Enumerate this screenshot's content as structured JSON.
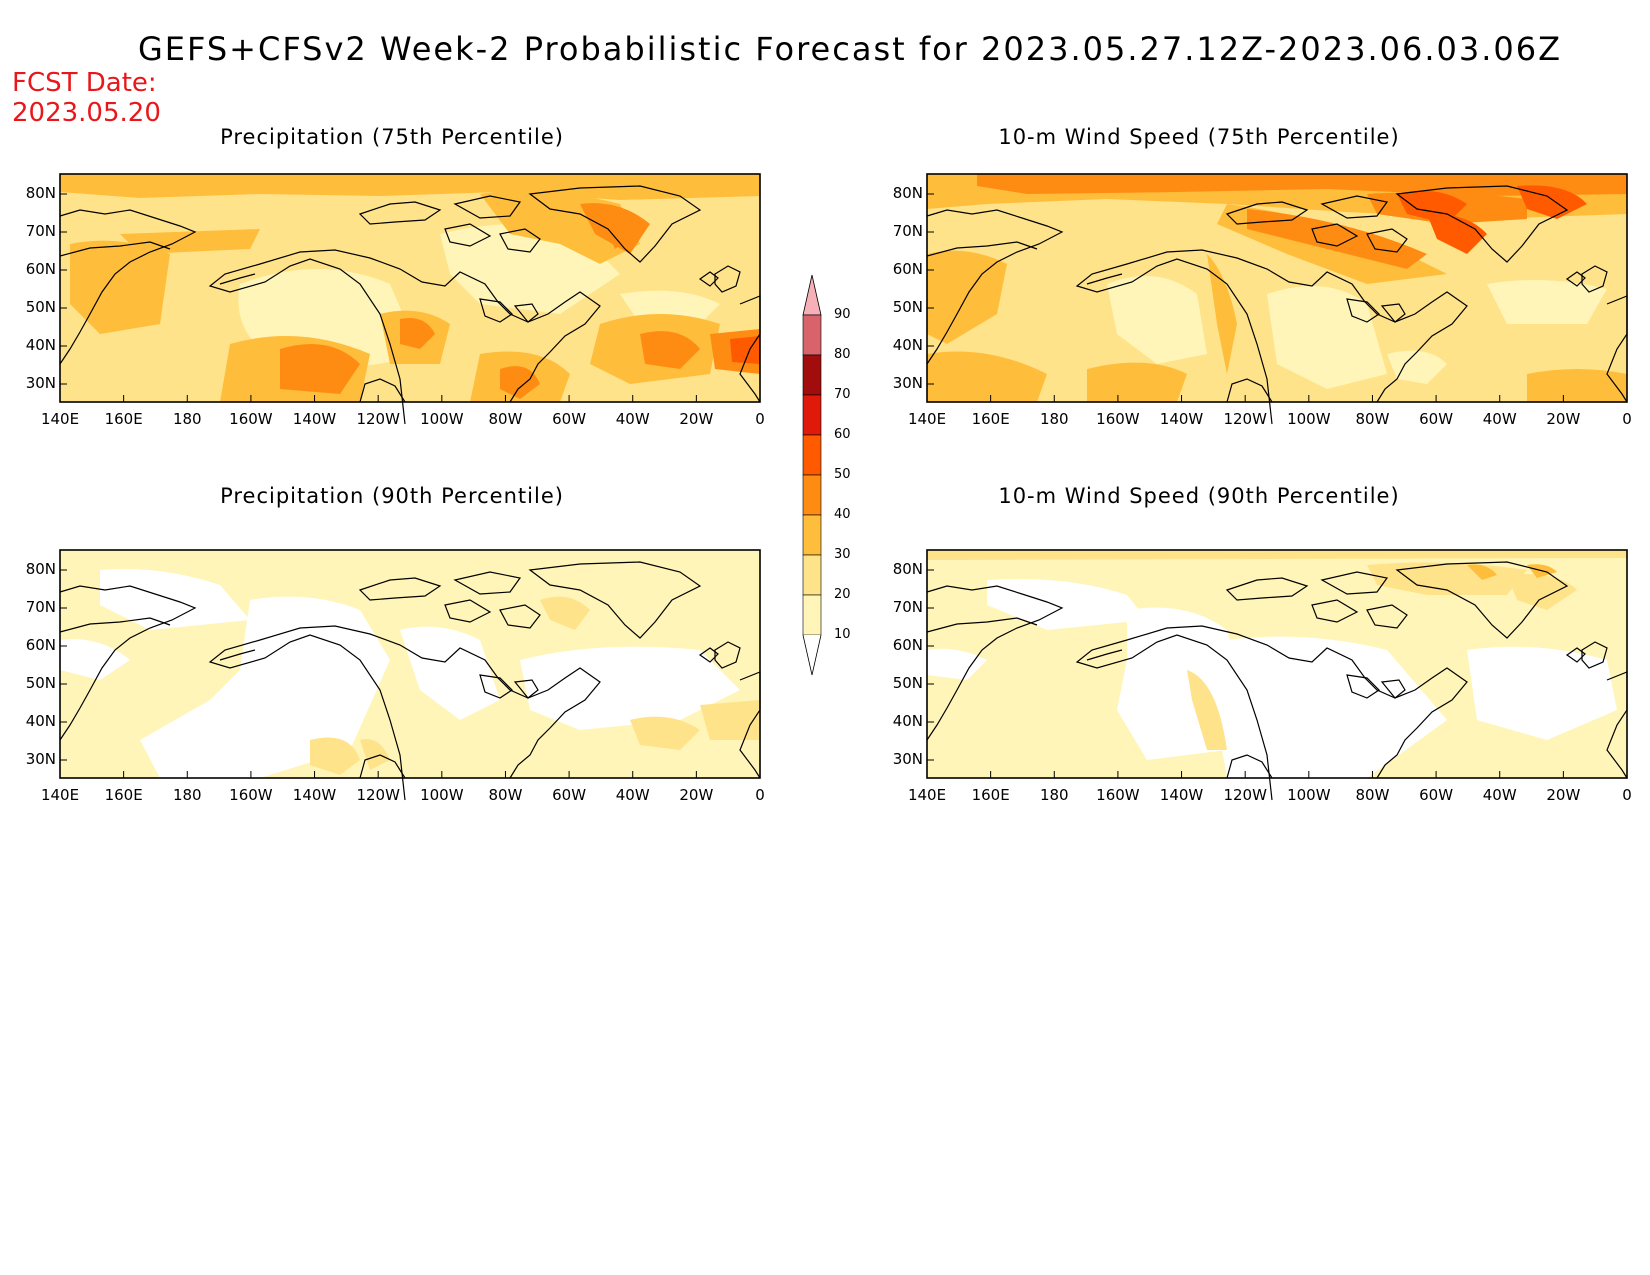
{
  "title": "GEFS+CFSv2 Week-2 Probabilistic Forecast for 2023.05.27.12Z-2023.06.03.06Z",
  "fcst_date": {
    "label": "FCST Date:",
    "value": "2023.05.20"
  },
  "colors": {
    "c10": "#fff5b8",
    "c20": "#ffe38a",
    "c30": "#ffbd3c",
    "c40": "#ff8c12",
    "c50": "#ff5a00",
    "c60": "#e01a0a",
    "c70": "#a10c0c",
    "c80": "#d8636a",
    "c90": "#f7b0b8",
    "coast": "#000000"
  },
  "legend": {
    "levels": [
      "10",
      "20",
      "30",
      "40",
      "50",
      "60",
      "70",
      "80",
      "90"
    ]
  },
  "axes": {
    "lat_ticks": [
      "80N",
      "70N",
      "60N",
      "50N",
      "40N",
      "30N"
    ],
    "lon_ticks": [
      "140E",
      "160E",
      "180",
      "160W",
      "140W",
      "120W",
      "100W",
      "80W",
      "60W",
      "40W",
      "20W",
      "0"
    ]
  },
  "panels": [
    {
      "id": "precip75",
      "title": "Precipitation (75th Percentile)"
    },
    {
      "id": "wind75",
      "title": "10-m Wind Speed (75th Percentile)"
    },
    {
      "id": "precip90",
      "title": "Precipitation (90th Percentile)"
    },
    {
      "id": "wind90",
      "title": "10-m Wind Speed (90th Percentile)"
    }
  ]
}
